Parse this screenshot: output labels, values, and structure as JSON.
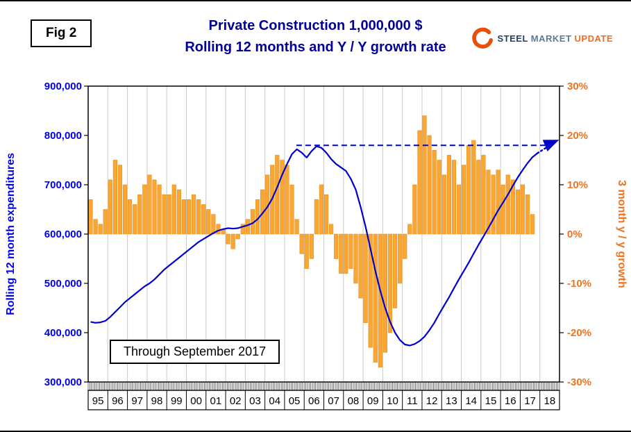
{
  "header": {
    "fig_label": "Fig 2",
    "title_line1": "Private Construction 1,000,000 $",
    "title_line2": "Rolling 12 months and Y / Y growth rate",
    "logo": {
      "word1": "STEEL",
      "word2": "MARKET",
      "word3": "UPDATE"
    }
  },
  "annotation": {
    "text": "Through September 2017"
  },
  "chart_data": {
    "type": "combo",
    "title": "Private Construction 1,000,000 $ - Rolling 12 months and Y / Y growth rate",
    "grid": "vertical-yearly",
    "legend_position": "none",
    "x_axis": {
      "start": 1995,
      "end": 2019,
      "year_labels": [
        "95",
        "96",
        "97",
        "98",
        "99",
        "00",
        "01",
        "02",
        "03",
        "04",
        "05",
        "06",
        "07",
        "08",
        "09",
        "10",
        "11",
        "12",
        "13",
        "14",
        "15",
        "16",
        "17",
        "18"
      ]
    },
    "left_axis": {
      "label": "Rolling 12 month expenditures",
      "min": 300000,
      "max": 900000,
      "tick_values": [
        900000,
        800000,
        700000,
        600000,
        500000,
        400000,
        300000
      ],
      "tick_labels": [
        "900,000",
        "800,000",
        "700,000",
        "600,000",
        "500,000",
        "400,000",
        "300,000"
      ],
      "color": "#0000EE"
    },
    "right_axis": {
      "label": "3 month y / y growth",
      "min": -30,
      "max": 30,
      "tick_values": [
        30,
        20,
        10,
        0,
        -10,
        -20,
        -30
      ],
      "tick_labels": [
        "30%",
        "20%",
        "10%",
        "0%",
        "-10%",
        "-20%",
        "-30%"
      ],
      "color": "#F07320"
    },
    "series": [
      {
        "name": "3 month y / y growth",
        "type": "bar",
        "axis": "right",
        "color": "#FAA634",
        "stroke": "#E08A12",
        "x_start": 1995.125,
        "x_step": 0.25,
        "values": [
          7,
          3,
          2,
          5,
          11,
          15,
          14,
          10,
          7,
          6,
          8,
          10,
          12,
          11,
          10,
          8,
          8,
          10,
          9,
          7,
          7,
          8,
          7,
          6,
          5,
          4,
          2,
          1,
          -2,
          -3,
          -1,
          2,
          3,
          5,
          7,
          9,
          12,
          14,
          16,
          15,
          14,
          10,
          3,
          -4,
          -7,
          -5,
          7,
          10,
          8,
          2,
          -5,
          -8,
          -8,
          -7,
          -10,
          -13,
          -18,
          -23,
          -26,
          -27,
          -24,
          -20,
          -15,
          -10,
          -5,
          2,
          10,
          21,
          24,
          20,
          17,
          15,
          12,
          16,
          15,
          10,
          14,
          18,
          19,
          15,
          16,
          13,
          12,
          13,
          10,
          12,
          11,
          9,
          10,
          8,
          4
        ]
      },
      {
        "name": "Rolling 12 month expenditures",
        "type": "line",
        "axis": "left",
        "color": "#0000CD",
        "x_start": 1995.125,
        "x_step": 0.25,
        "values": [
          422000,
          420000,
          421000,
          424000,
          432000,
          442000,
          452000,
          462000,
          470000,
          478000,
          486000,
          494000,
          500000,
          508000,
          518000,
          528000,
          536000,
          544000,
          552000,
          560000,
          568000,
          576000,
          584000,
          590000,
          596000,
          602000,
          607000,
          610000,
          612000,
          611000,
          612000,
          615000,
          618000,
          622000,
          630000,
          642000,
          655000,
          672000,
          695000,
          720000,
          742000,
          762000,
          772000,
          765000,
          755000,
          768000,
          778000,
          775000,
          765000,
          752000,
          742000,
          735000,
          728000,
          712000,
          690000,
          655000,
          615000,
          570000,
          525000,
          485000,
          450000,
          422000,
          400000,
          385000,
          376000,
          374000,
          377000,
          383000,
          392000,
          405000,
          420000,
          438000,
          455000,
          472000,
          490000,
          508000,
          525000,
          542000,
          560000,
          578000,
          595000,
          612000,
          630000,
          648000,
          664000,
          680000,
          698000,
          715000,
          730000,
          744000,
          756000,
          764000
        ]
      }
    ],
    "reference_line": {
      "axis": "left",
      "y": 780000,
      "x_start": 2005.6,
      "x_end": 2018.3,
      "style": "dashed",
      "color": "#0000CD",
      "arrow_end": {
        "x": 2018.85,
        "y": 789000
      }
    },
    "projection": {
      "axis": "left",
      "style": "dotted",
      "color": "#0000CD",
      "points": [
        [
          2017.875,
          764000
        ],
        [
          2018.8,
          787000
        ]
      ]
    }
  }
}
